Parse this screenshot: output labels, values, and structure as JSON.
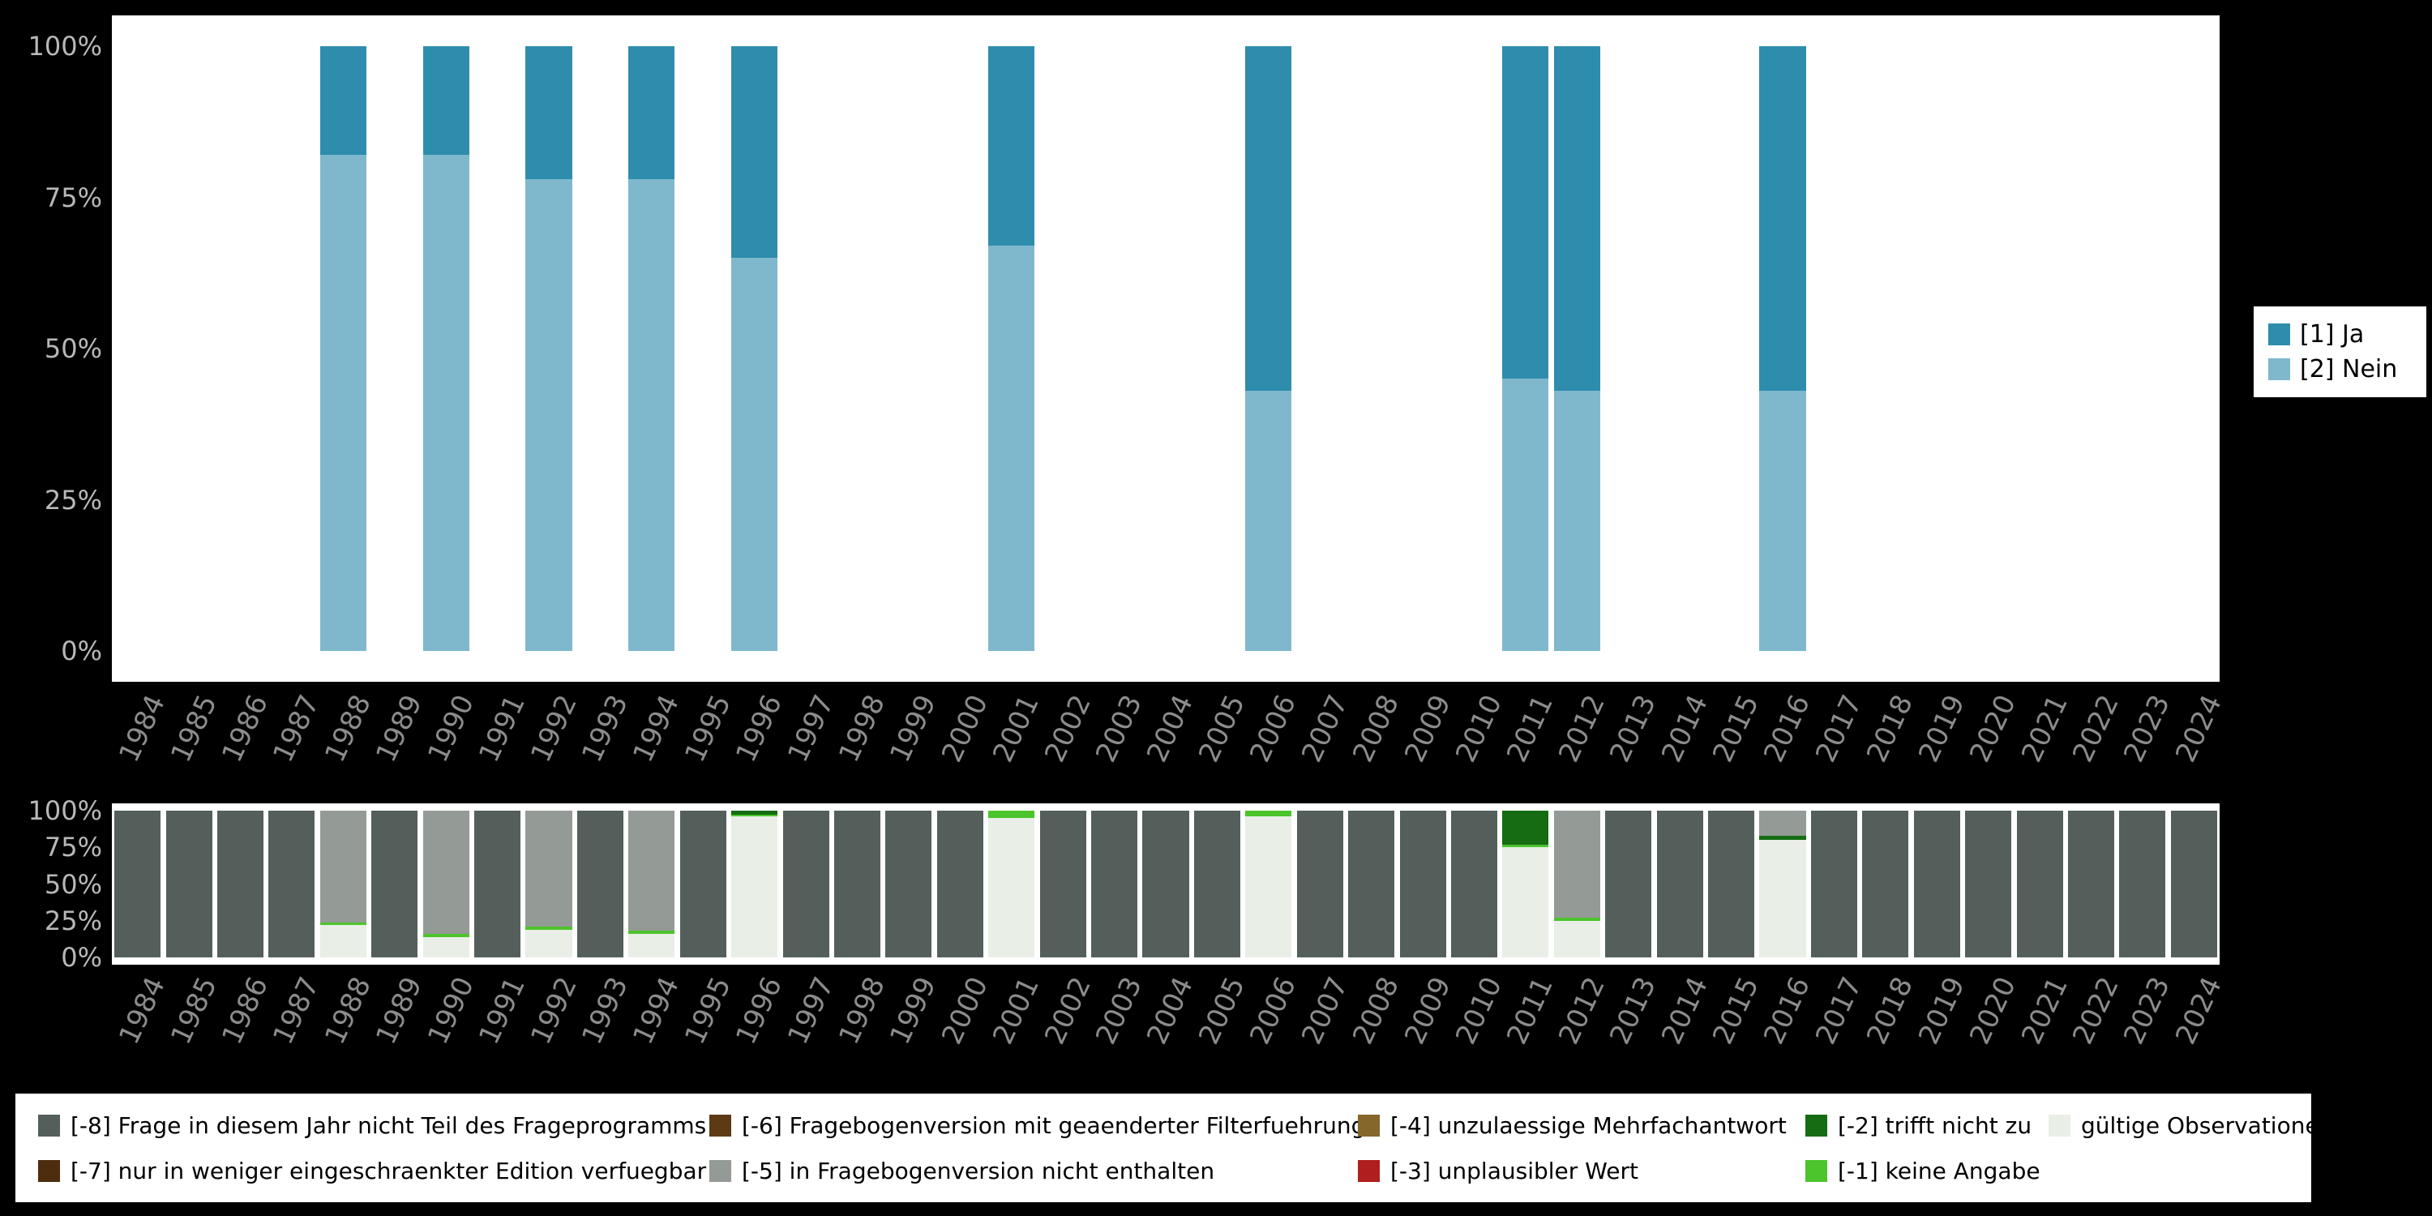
{
  "page": {
    "background": "#000000",
    "plot_background": "#ffffff",
    "x_axis_text_color": "#8c8c8c",
    "y_axis_text_color": "#b8b8b8"
  },
  "years": [
    "1984",
    "1985",
    "1986",
    "1987",
    "1988",
    "1989",
    "1990",
    "1991",
    "1992",
    "1993",
    "1994",
    "1995",
    "1996",
    "1997",
    "1998",
    "1999",
    "2000",
    "2001",
    "2002",
    "2003",
    "2004",
    "2005",
    "2006",
    "2007",
    "2008",
    "2009",
    "2010",
    "2011",
    "2012",
    "2013",
    "2014",
    "2015",
    "2016",
    "2017",
    "2018",
    "2019",
    "2020",
    "2021",
    "2022",
    "2023",
    "2024"
  ],
  "y_ticks": [
    "0%",
    "25%",
    "50%",
    "75%",
    "100%"
  ],
  "top_legend": {
    "background": "#ffffff",
    "items": [
      {
        "label": "[1] Ja",
        "color": "#2e8dad"
      },
      {
        "label": "[2] Nein",
        "color": "#7fb8cd"
      }
    ]
  },
  "bottom_legend": {
    "background": "#ffffff",
    "columns": [
      [
        {
          "label": "[-8] Frage in diesem Jahr nicht Teil des Frageprogramms",
          "color": "#545f5c"
        },
        {
          "label": "[-7] nur in weniger eingeschraenkter Edition verfuegbar",
          "color": "#4e2d0e"
        }
      ],
      [
        {
          "label": "[-6] Fragebogenversion mit geaenderter Filterfuehrung",
          "color": "#5d3a14"
        },
        {
          "label": "[-5] in Fragebogenversion nicht enthalten",
          "color": "#949a95"
        }
      ],
      [
        {
          "label": "[-4] unzulaessige Mehrfachantwort",
          "color": "#85662b"
        },
        {
          "label": "[-3] unplausibler Wert",
          "color": "#b01e1e"
        }
      ],
      [
        {
          "label": "[-2] trifft nicht zu",
          "color": "#156c12"
        },
        {
          "label": "[-1] keine Angabe",
          "color": "#4cc42c"
        }
      ],
      [
        {
          "label": "gültige Observationen",
          "color": "#e9eee7"
        }
      ]
    ]
  },
  "chart_data": [
    {
      "name": "frequencies-by-year",
      "type": "bar",
      "stacked": true,
      "stack_order": "bottom-to-top",
      "title": "",
      "xlabel": "",
      "ylabel": "",
      "ylim": [
        0,
        100
      ],
      "y_tick_labels": [
        "0%",
        "25%",
        "50%",
        "75%",
        "100%"
      ],
      "legend_position": "right",
      "categories_note": "x axis shows all years 1984-2024; bars exist only for years listed in values",
      "series": [
        {
          "name": "[2] Nein",
          "color": "#7fb8cd",
          "values": {
            "1988": 82,
            "1990": 82,
            "1992": 78,
            "1994": 78,
            "1996": 65,
            "2001": 67,
            "2006": 43,
            "2011": 45,
            "2012": 43,
            "2016": 43
          }
        },
        {
          "name": "[1] Ja",
          "color": "#2e8dad",
          "values": {
            "1988": 18,
            "1990": 18,
            "1992": 22,
            "1994": 22,
            "1996": 35,
            "2001": 33,
            "2006": 57,
            "2011": 55,
            "2012": 57,
            "2016": 57
          }
        }
      ]
    },
    {
      "name": "missings-by-year",
      "type": "bar",
      "stacked": true,
      "stack_order": "bottom-to-top",
      "title": "",
      "xlabel": "",
      "ylabel": "",
      "ylim": [
        0,
        100
      ],
      "y_tick_labels": [
        "0%",
        "25%",
        "50%",
        "75%",
        "100%"
      ],
      "legend_position": "bottom",
      "series": [
        {
          "name": "gültige Observationen",
          "color": "#e9eee7",
          "values": {
            "1988": 22,
            "1990": 14,
            "1992": 19,
            "1994": 16,
            "1996": 96,
            "2001": 95,
            "2006": 96,
            "2011": 75,
            "2012": 25,
            "2016": 80
          }
        },
        {
          "name": "[-1] keine Angabe",
          "color": "#4cc42c",
          "values": {
            "1988": 2,
            "1990": 2,
            "1992": 2,
            "1994": 2,
            "1996": 1,
            "2001": 5,
            "2006": 4,
            "2011": 2,
            "2012": 2
          }
        },
        {
          "name": "[-2] trifft nicht zu",
          "color": "#156c12",
          "values": {
            "1996": 3,
            "2011": 23,
            "2016": 3
          }
        },
        {
          "name": "[-3] unplausibler Wert",
          "color": "#b01e1e",
          "values": {}
        },
        {
          "name": "[-4] unzulaessige Mehrfachantwort",
          "color": "#85662b",
          "values": {}
        },
        {
          "name": "[-5] in Fragebogenversion nicht enthalten",
          "color": "#949a95",
          "values": {
            "1988": 76,
            "1990": 84,
            "1992": 79,
            "1994": 82,
            "2012": 73,
            "2016": 17
          }
        },
        {
          "name": "[-6] Fragebogenversion mit geaenderter Filterfuehrung",
          "color": "#5d3a14",
          "values": {}
        },
        {
          "name": "[-7] nur in weniger eingeschraenkter Edition verfuegbar",
          "color": "#4e2d0e",
          "values": {}
        },
        {
          "name": "[-8] Frage in diesem Jahr nicht Teil des Frageprogramms",
          "color": "#545f5c",
          "values": {
            "1984": 100,
            "1985": 100,
            "1986": 100,
            "1987": 100,
            "1989": 100,
            "1991": 100,
            "1993": 100,
            "1995": 100,
            "1997": 100,
            "1998": 100,
            "1999": 100,
            "2000": 100,
            "2002": 100,
            "2003": 100,
            "2004": 100,
            "2005": 100,
            "2007": 100,
            "2008": 100,
            "2009": 100,
            "2010": 100,
            "2013": 100,
            "2014": 100,
            "2015": 100,
            "2017": 100,
            "2018": 100,
            "2019": 100,
            "2020": 100,
            "2021": 100,
            "2022": 100,
            "2023": 100,
            "2024": 100
          }
        }
      ]
    }
  ]
}
